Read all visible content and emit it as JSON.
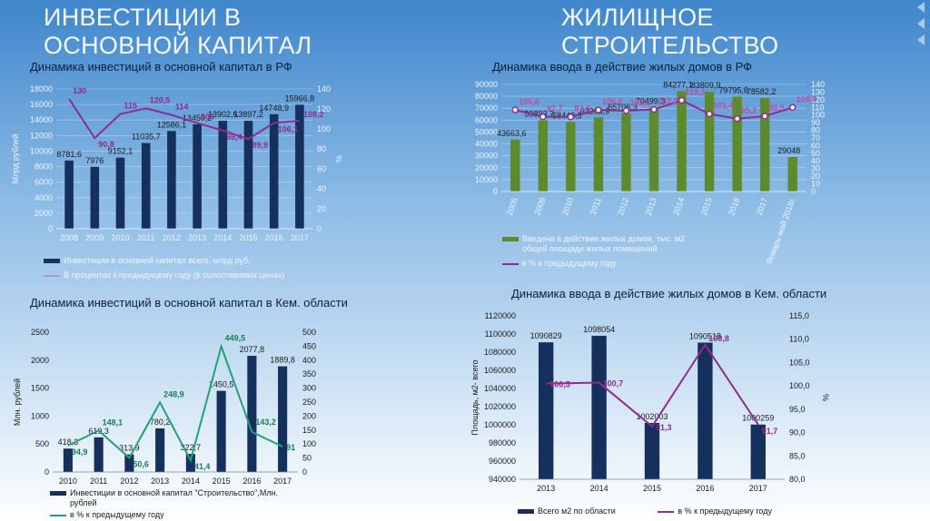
{
  "headings": {
    "left": [
      "ИНВЕСТИЦИИ В",
      "ОСНОВНОЙ КАПИТАЛ"
    ],
    "right": [
      "ЖИЛИЩНОЕ",
      "СТРОИТЕЛЬСТВО"
    ]
  },
  "colors": {
    "bar_navy": "#16305e",
    "bar_green": "#5d8a2a",
    "line_purple": "#8e2d8e",
    "line_teal": "#22a079",
    "legend_purple_light": "#c08cc9"
  },
  "chart_data": [
    {
      "id": "inv_rf",
      "type": "bar+line",
      "title": "Динамика инвестиций в основной капитал в РФ",
      "categories": [
        "2008",
        "2009",
        "2010",
        "2011",
        "2012",
        "2013",
        "2014",
        "2015",
        "2016",
        "2017"
      ],
      "ylabel": "Млрд рублей",
      "y2label": "%",
      "ylim": [
        0,
        18000
      ],
      "yticks": [
        "0",
        "2000",
        "4000",
        "6000",
        "8000",
        "10000",
        "12000",
        "14000",
        "16000",
        "18000"
      ],
      "y2lim": [
        0,
        140
      ],
      "y2ticks": [
        "0",
        "20",
        "40",
        "60",
        "80",
        "100",
        "120",
        "140"
      ],
      "series": [
        {
          "name": "Инвестиции в основной капитал всего, млрд руб.",
          "kind": "bar",
          "values": [
            8781.6,
            7976,
            9152.1,
            11035.7,
            12586.1,
            13450.2,
            13902.6,
            13897.2,
            14748.9,
            15966.8
          ],
          "labels": [
            "8781,6",
            "7976",
            "9152,1",
            "11035,7",
            "12586,1",
            "13450,2",
            "13902,6",
            "13897,2",
            "14748,9",
            "15966,8"
          ]
        },
        {
          "name": "В процентах к предыдущему году (в сопоставимых ценах)",
          "kind": "line",
          "axis": "y2",
          "values": [
            130,
            90.8,
            115,
            120.5,
            114,
            106,
            98.4,
            89.9,
            106.1,
            108.2
          ],
          "labels": [
            "130",
            "90,8",
            "115",
            "120,5",
            "114",
            "106",
            "98,4",
            "89,9",
            "106,1",
            "108,2"
          ]
        }
      ]
    },
    {
      "id": "inv_kem",
      "type": "bar+line",
      "title": "Динамика инвестиций в основной капитал в Кем. области",
      "categories": [
        "2010",
        "2011",
        "2012",
        "2013",
        "2014",
        "2015",
        "2016",
        "2017"
      ],
      "ylabel": "Млн. рублей",
      "ylim": [
        0,
        2500
      ],
      "yticks": [
        "0",
        "500",
        "1000",
        "1500",
        "2000",
        "2500"
      ],
      "y2lim": [
        0,
        500
      ],
      "y2ticks": [
        "0",
        "50",
        "100",
        "150",
        "200",
        "250",
        "300",
        "350",
        "400",
        "450",
        "500"
      ],
      "series": [
        {
          "name": "Инвестиции в основной капитал \"Строительство\",Млн. рублей",
          "kind": "bar",
          "values": [
            418.3,
            619.3,
            313.9,
            780.2,
            322.7,
            1450.5,
            2077.8,
            1889.8
          ],
          "labels": [
            "418,3",
            "619,3",
            "313,9",
            "780,2",
            "322,7",
            "1450,5",
            "2077,8",
            "1889,8"
          ]
        },
        {
          "name": "в % к предыдущему году",
          "kind": "line",
          "axis": "y2",
          "values": [
            94.9,
            148.1,
            50.6,
            248.9,
            41.4,
            449.5,
            143.2,
            91
          ],
          "labels": [
            "94,9",
            "148,1",
            "50,6",
            "248,9",
            "41,4",
            "449,5",
            "143,2",
            "91"
          ]
        }
      ]
    },
    {
      "id": "housing_rf",
      "type": "bar+line",
      "title": "Динамика  ввода в действие жилых домов в РФ",
      "categories": [
        "2005",
        "2009",
        "2010",
        "2011",
        "2012",
        "2013",
        "2014",
        "2015",
        "2016",
        "2017",
        "Январь-май 2018г."
      ],
      "ylim": [
        0,
        90000
      ],
      "yticks": [
        "0",
        "10000",
        "20000",
        "30000",
        "40000",
        "50000",
        "60000",
        "70000",
        "80000",
        "90000"
      ],
      "y2lim": [
        0,
        140
      ],
      "y2ticks": [
        "0",
        "10",
        "20",
        "30",
        "40",
        "50",
        "60",
        "70",
        "80",
        "90",
        "100",
        "110",
        "120",
        "130",
        "140"
      ],
      "series": [
        {
          "name": "Введена в  действие жилых домов, тыс. м2 общей площади жилых помещений",
          "kind": "bar",
          "values": [
            43663.6,
            59893.7,
            58448.3,
            62263.9,
            65706.3,
            70499.3,
            84277.1,
            83809.9,
            79795.6,
            78582.2,
            29048
          ],
          "labels": [
            "43663,6",
            "59893,7",
            "58448,3",
            "62263,9",
            "65706,3",
            "70499,3",
            "84277,1",
            "83809,9",
            "79795,6",
            "78582,2",
            "29048"
          ]
        },
        {
          "name": "в % к предыдущему году",
          "kind": "line",
          "axis": "y2",
          "values": [
            106.6,
            97.7,
            97.6,
            106.6,
            105.6,
            107.2,
            119.2,
            101.4,
            95.2,
            98.5,
            109.9
          ],
          "labels": [
            "106,6",
            "97,7",
            "97,6",
            "106,6",
            "105,6",
            "107,2",
            "119,2",
            "101,4",
            "95,2",
            "98,5",
            "109,9"
          ]
        }
      ]
    },
    {
      "id": "housing_kem",
      "type": "bar+line",
      "title": "Динамика  ввода в действие жилых домов в Кем. области",
      "categories": [
        "2013",
        "2014",
        "2015",
        "2016",
        "2017"
      ],
      "ylabel": "Площадь, м2- всего",
      "y2label": "%",
      "ylim": [
        940000,
        1120000
      ],
      "yticks": [
        "940000",
        "960000",
        "980000",
        "1000000",
        "1020000",
        "1040000",
        "1060000",
        "1080000",
        "1100000",
        "1120000"
      ],
      "y2lim": [
        80,
        115
      ],
      "y2ticks": [
        "80,0",
        "85,0",
        "90,0",
        "95,0",
        "100,0",
        "105,0",
        "110,0",
        "115,0"
      ],
      "series": [
        {
          "name": "Всего м2 по области",
          "kind": "bar",
          "values": [
            1090829,
            1098054,
            1002003,
            1090518,
            1000259
          ],
          "labels": [
            "1090829",
            "1098054",
            "1002003",
            "1090518",
            "1000259"
          ]
        },
        {
          "name": "в % к предыдущему году",
          "kind": "line",
          "axis": "y2",
          "values": [
            100.5,
            100.7,
            91.3,
            108.8,
            91.7
          ],
          "labels": [
            "100,5",
            "100,7",
            "91,3",
            "108,8",
            "91,7"
          ]
        }
      ]
    }
  ]
}
